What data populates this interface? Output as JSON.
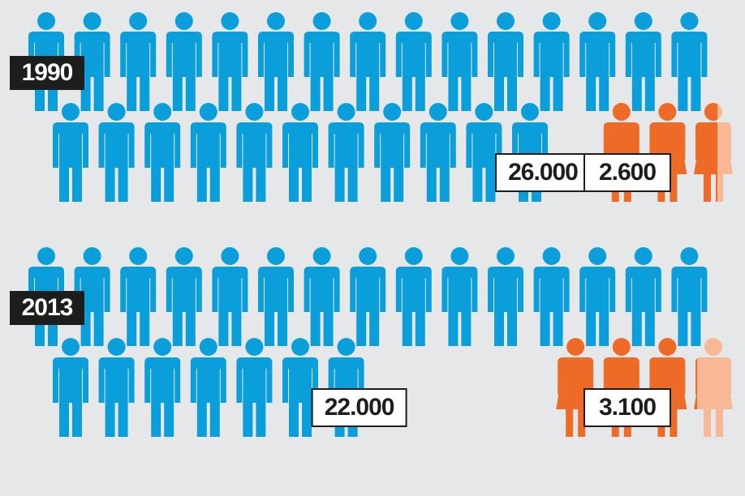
{
  "chart_data": {
    "type": "pictograph",
    "categories": [
      "1990",
      "2013"
    ],
    "series": [
      {
        "color": "#0a9edb",
        "values": [
          26000,
          22000
        ],
        "value_labels": [
          "26.000",
          "22.000"
        ]
      },
      {
        "color": "#ee6a27",
        "remainder_color": "#f8b896",
        "values": [
          2600,
          3100
        ],
        "value_labels": [
          "2.600",
          "3.100"
        ]
      }
    ]
  }
}
